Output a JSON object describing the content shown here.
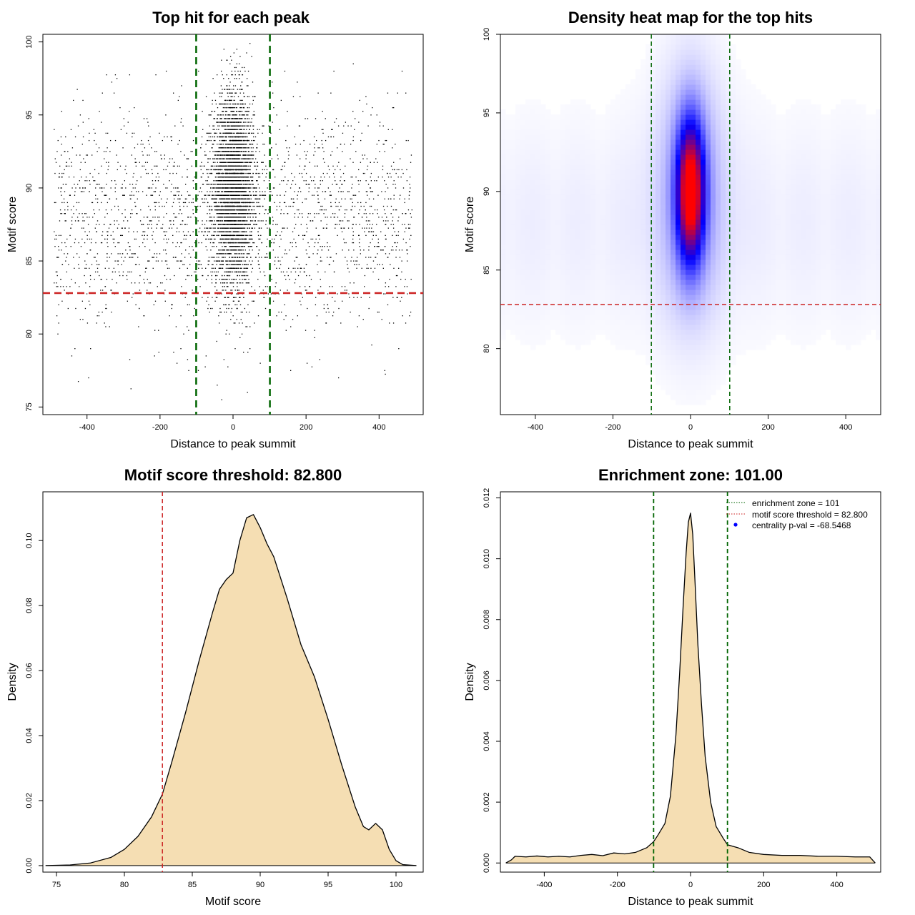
{
  "colors": {
    "threshold_line": "#cc2222",
    "zone_line": "#006400",
    "density_fill": "#f5deb3",
    "density_stroke": "#000000",
    "points": "#000000",
    "heat_low": "#ffffff",
    "heat_mid": "#0000ff",
    "heat_high": "#ff0000",
    "centrality_dot": "#0000ff"
  },
  "chart_data": [
    {
      "id": "scatter",
      "type": "scatter",
      "title": "Top hit for each peak",
      "xlabel": "Distance to peak summit",
      "ylabel": "Motif score",
      "xlim": [
        -500,
        500
      ],
      "ylim": [
        75,
        100
      ],
      "xticks": [
        -400,
        -200,
        0,
        200,
        400
      ],
      "yticks": [
        75,
        80,
        85,
        90,
        95,
        100
      ],
      "hlines": [
        82.8
      ],
      "vlines": [
        -101,
        101
      ],
      "point_cloud": {
        "center_count": 4200,
        "center_sd_x": 28,
        "center_mean_y": 90,
        "center_sd_y": 3.2,
        "background_count": 2300,
        "background_mean_y": 88,
        "background_sd_y": 3.6,
        "x_range": [
          -490,
          490
        ],
        "y_range": [
          75.5,
          99.9
        ]
      }
    },
    {
      "id": "heatmap",
      "type": "heatmap",
      "title": "Density heat map for the top hits",
      "xlabel": "Distance to peak summit",
      "ylabel": "Motif score",
      "xlim": [
        -490,
        490
      ],
      "ylim": [
        75.8,
        100
      ],
      "xticks": [
        -400,
        -200,
        0,
        200,
        400
      ],
      "yticks": [
        80,
        85,
        90,
        95,
        100
      ],
      "hlines": [
        82.8
      ],
      "vlines": [
        -101,
        101
      ],
      "peak": {
        "x": 0,
        "y": 90.0,
        "sd_x": 24,
        "sd_y": 3.0
      },
      "halo": {
        "x": 0,
        "y": 90.0,
        "sd_x": 60,
        "sd_y": 5.5
      }
    },
    {
      "id": "score-density",
      "type": "area",
      "title": "Motif score threshold: 82.800",
      "xlabel": "Motif score",
      "ylabel": "Density",
      "xlim": [
        74,
        102
      ],
      "ylim": [
        -0.002,
        0.115
      ],
      "xticks": [
        75,
        80,
        85,
        90,
        95,
        100
      ],
      "yticks": [
        0.0,
        0.02,
        0.04,
        0.06,
        0.08,
        0.1
      ],
      "ytick_labels": [
        "0.00",
        "0.02",
        "0.04",
        "0.06",
        "0.08",
        "0.10"
      ],
      "vlines": [
        82.8
      ],
      "x": [
        74.2,
        76,
        77.5,
        79,
        80,
        81,
        82,
        82.8,
        83.5,
        84.5,
        85.5,
        86.5,
        87,
        87.5,
        88,
        88.5,
        89,
        89.5,
        90,
        90.5,
        91,
        92,
        93,
        94,
        95,
        96,
        97,
        97.6,
        98,
        98.5,
        99,
        99.5,
        100,
        100.5,
        101.5
      ],
      "y": [
        0.0,
        0.0002,
        0.0008,
        0.0025,
        0.005,
        0.009,
        0.015,
        0.022,
        0.032,
        0.047,
        0.063,
        0.078,
        0.085,
        0.088,
        0.09,
        0.1,
        0.107,
        0.108,
        0.104,
        0.099,
        0.095,
        0.082,
        0.068,
        0.058,
        0.045,
        0.031,
        0.018,
        0.012,
        0.011,
        0.013,
        0.011,
        0.005,
        0.0015,
        0.0003,
        0.0
      ]
    },
    {
      "id": "distance-density",
      "type": "area",
      "title": "Enrichment zone: 101.00",
      "xlabel": "Distance to peak summit",
      "ylabel": "Density",
      "xlim": [
        -520,
        520
      ],
      "ylim": [
        -0.0003,
        0.0122
      ],
      "xticks": [
        -400,
        -200,
        0,
        200,
        400
      ],
      "yticks": [
        0.0,
        0.002,
        0.004,
        0.006,
        0.008,
        0.01,
        0.012
      ],
      "ytick_labels": [
        "0.000",
        "0.002",
        "0.004",
        "0.006",
        "0.008",
        "0.010",
        "0.012"
      ],
      "vlines": [
        -101,
        101
      ],
      "x": [
        -505,
        -490,
        -480,
        -450,
        -420,
        -390,
        -360,
        -330,
        -300,
        -270,
        -240,
        -210,
        -180,
        -150,
        -120,
        -101,
        -90,
        -70,
        -55,
        -40,
        -30,
        -20,
        -12,
        -6,
        0,
        6,
        12,
        20,
        30,
        40,
        55,
        70,
        90,
        101,
        130,
        160,
        200,
        250,
        300,
        350,
        400,
        450,
        490,
        505
      ],
      "y": [
        0.0,
        0.0001,
        0.00022,
        0.0002,
        0.00023,
        0.0002,
        0.00022,
        0.0002,
        0.00025,
        0.00028,
        0.00024,
        0.00033,
        0.0003,
        0.00035,
        0.0005,
        0.0007,
        0.0009,
        0.0013,
        0.0022,
        0.0042,
        0.0062,
        0.0085,
        0.0102,
        0.0112,
        0.0115,
        0.0108,
        0.0093,
        0.0072,
        0.0052,
        0.0035,
        0.002,
        0.0012,
        0.0008,
        0.0006,
        0.0005,
        0.00035,
        0.00028,
        0.00025,
        0.00025,
        0.00022,
        0.00022,
        0.0002,
        0.0002,
        0.0
      ]
    }
  ],
  "legend": {
    "items": [
      {
        "label": "enrichment zone = 101",
        "style": "dotted-green"
      },
      {
        "label": "motif score threshold = 82.800",
        "style": "dotted-red"
      },
      {
        "label": "centrality p-val = -68.5468",
        "style": "blue-dot"
      }
    ]
  }
}
